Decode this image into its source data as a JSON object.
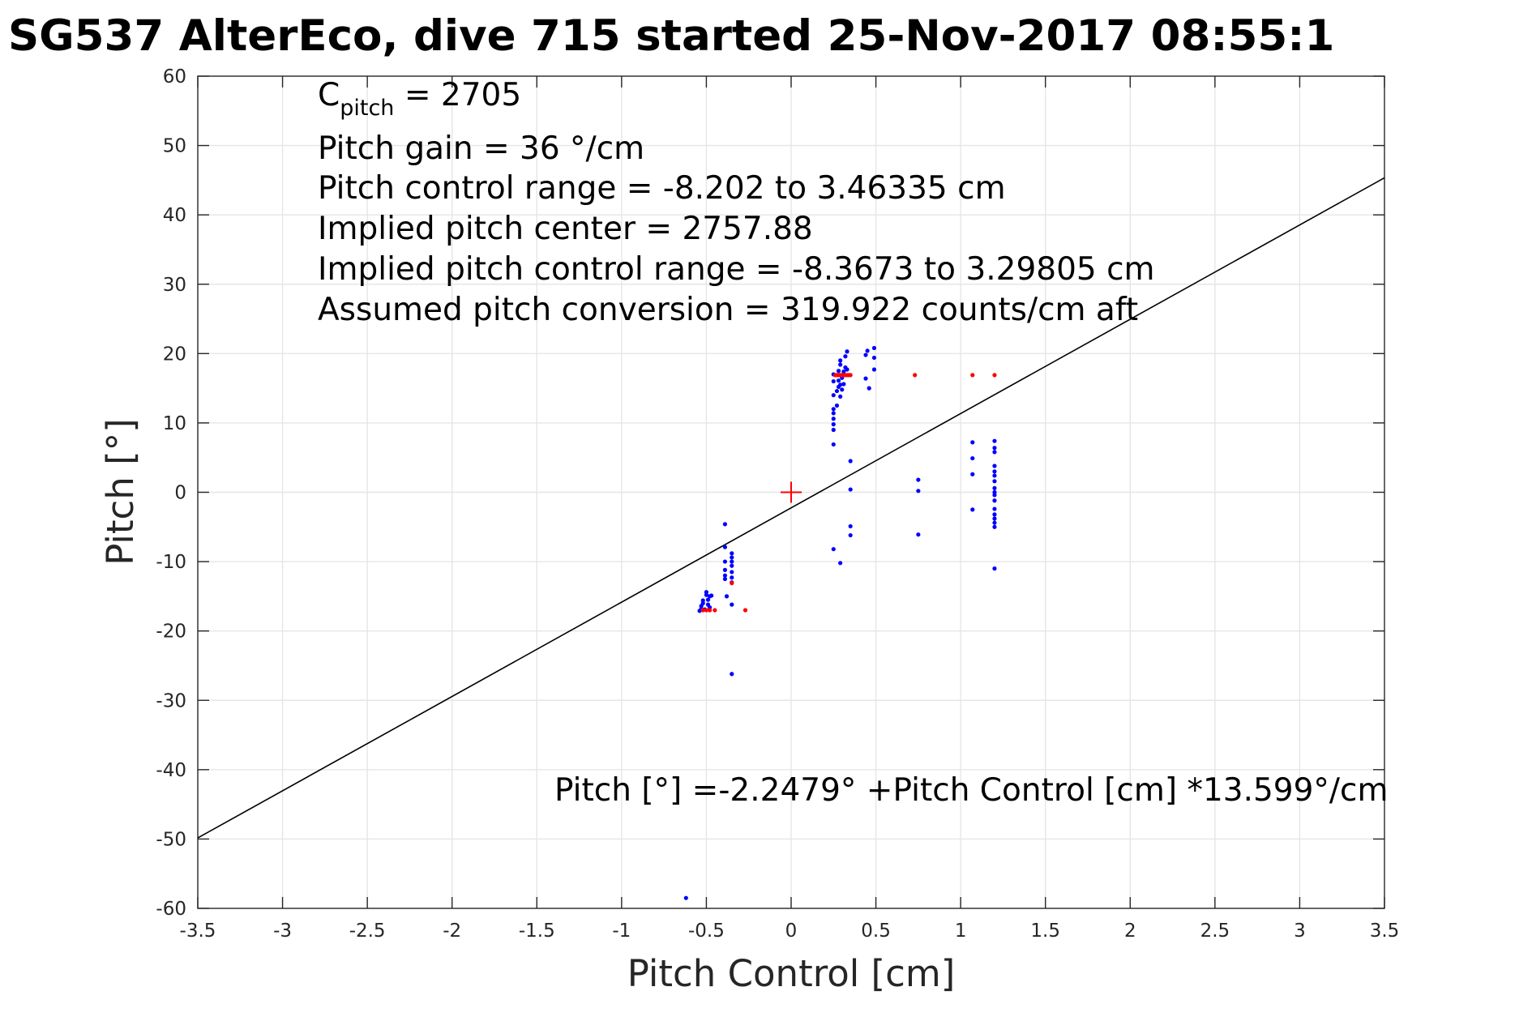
{
  "title": "SG537 AlterEco, dive 715 started 25-Nov-2017 08:55:1",
  "annotations": {
    "c_pitch_main": "C",
    "c_pitch_sub": "pitch",
    "c_pitch_value": " = 2705",
    "pitch_gain": "Pitch gain = 36 °/cm",
    "control_range": "Pitch control range = -8.202 to 3.46335 cm",
    "implied_center": "Implied pitch center = 2757.88",
    "implied_range": "Implied pitch control range = -8.3673 to 3.29805 cm",
    "assumed_conversion": "Assumed pitch conversion = 319.922 counts/cm aft",
    "fit_equation": "Pitch [°] =-2.2479° +Pitch Control [cm] *13.599°/cm"
  },
  "chart_data": {
    "type": "scatter",
    "xlabel": "Pitch Control [cm]",
    "ylabel": "Pitch [°]",
    "xlim": [
      -3.5,
      3.5
    ],
    "ylim": [
      -60,
      60
    ],
    "xticks": [
      -3.5,
      -3,
      -2.5,
      -2,
      -1.5,
      -1,
      -0.5,
      0,
      0.5,
      1,
      1.5,
      2,
      2.5,
      3,
      3.5
    ],
    "xtick_labels": [
      "-3.5",
      "-3",
      "-2.5",
      "-2",
      "-1.5",
      "-1",
      "-0.5",
      "0",
      "0.5",
      "1",
      "1.5",
      "2",
      "2.5",
      "3",
      "3.5"
    ],
    "yticks": [
      60,
      50,
      40,
      30,
      20,
      10,
      0,
      -10,
      -20,
      -30,
      -40,
      -50,
      -60
    ],
    "ytick_labels": [
      "60",
      "50",
      "40",
      "30",
      "20",
      "10",
      "0",
      "-10",
      "-20",
      "-30",
      "-40",
      "-50",
      "-60"
    ],
    "grid": true,
    "fit_line": {
      "intercept": -2.2479,
      "slope": 13.599,
      "color": "#000000"
    },
    "center_marker": {
      "x": 0,
      "y": 0,
      "color": "#ff0000"
    },
    "series": [
      {
        "color": "#0000ff",
        "points": [
          [
            -0.62,
            -58.5
          ],
          [
            -0.35,
            -26.2
          ],
          [
            -0.54,
            -17.1
          ],
          [
            -0.53,
            -16.8
          ],
          [
            -0.53,
            -16.4
          ],
          [
            -0.52,
            -16.0
          ],
          [
            -0.52,
            -15.6
          ],
          [
            -0.51,
            -16.9
          ],
          [
            -0.5,
            -14.8
          ],
          [
            -0.5,
            -14.4
          ],
          [
            -0.49,
            -15.5
          ],
          [
            -0.49,
            -16.2
          ],
          [
            -0.48,
            -15.0
          ],
          [
            -0.48,
            -16.6
          ],
          [
            -0.47,
            -14.9
          ],
          [
            -0.39,
            -4.6
          ],
          [
            -0.39,
            -7.9
          ],
          [
            -0.39,
            -10.0
          ],
          [
            -0.39,
            -11.2
          ],
          [
            -0.39,
            -12.0
          ],
          [
            -0.39,
            -12.5
          ],
          [
            -0.38,
            -15.0
          ],
          [
            -0.35,
            -8.8
          ],
          [
            -0.35,
            -9.4
          ],
          [
            -0.35,
            -10.0
          ],
          [
            -0.35,
            -10.6
          ],
          [
            -0.35,
            -11.5
          ],
          [
            -0.35,
            -12.3
          ],
          [
            -0.35,
            -13.0
          ],
          [
            -0.35,
            -16.2
          ],
          [
            0.25,
            6.9
          ],
          [
            0.25,
            9.0
          ],
          [
            0.25,
            9.8
          ],
          [
            0.25,
            10.6
          ],
          [
            0.25,
            11.4
          ],
          [
            0.25,
            12.0
          ],
          [
            0.25,
            14.0
          ],
          [
            0.25,
            16.0
          ],
          [
            0.25,
            17.0
          ],
          [
            0.27,
            12.5
          ],
          [
            0.27,
            14.6
          ],
          [
            0.28,
            15.2
          ],
          [
            0.28,
            16.1
          ],
          [
            0.28,
            17.5
          ],
          [
            0.29,
            13.8
          ],
          [
            0.29,
            15.5
          ],
          [
            0.29,
            18.4
          ],
          [
            0.29,
            19.0
          ],
          [
            0.3,
            14.8
          ],
          [
            0.3,
            16.5
          ],
          [
            0.31,
            15.6
          ],
          [
            0.31,
            17.4
          ],
          [
            0.32,
            18.0
          ],
          [
            0.32,
            19.6
          ],
          [
            0.33,
            20.3
          ],
          [
            0.33,
            17.7
          ],
          [
            0.25,
            -8.2
          ],
          [
            0.29,
            -10.2
          ],
          [
            0.35,
            4.5
          ],
          [
            0.35,
            0.4
          ],
          [
            0.35,
            -4.9
          ],
          [
            0.35,
            -6.2
          ],
          [
            0.44,
            19.8
          ],
          [
            0.44,
            16.4
          ],
          [
            0.45,
            20.4
          ],
          [
            0.46,
            15.0
          ],
          [
            0.49,
            20.8
          ],
          [
            0.49,
            19.4
          ],
          [
            0.49,
            17.7
          ],
          [
            0.75,
            1.8
          ],
          [
            0.75,
            0.2
          ],
          [
            0.75,
            -6.1
          ],
          [
            1.07,
            7.2
          ],
          [
            1.07,
            4.9
          ],
          [
            1.07,
            2.6
          ],
          [
            1.07,
            -2.5
          ],
          [
            1.2,
            7.4
          ],
          [
            1.2,
            6.4
          ],
          [
            1.2,
            5.8
          ],
          [
            1.2,
            3.8
          ],
          [
            1.2,
            3.0
          ],
          [
            1.2,
            2.4
          ],
          [
            1.2,
            1.6
          ],
          [
            1.2,
            0.6
          ],
          [
            1.2,
            0.0
          ],
          [
            1.2,
            -0.4
          ],
          [
            1.2,
            -1.2
          ],
          [
            1.2,
            -2.4
          ],
          [
            1.2,
            -3.2
          ],
          [
            1.2,
            -3.8
          ],
          [
            1.2,
            -4.4
          ],
          [
            1.2,
            -5.0
          ],
          [
            1.2,
            -11.0
          ]
        ]
      },
      {
        "color": "#ff0000",
        "points": [
          [
            -0.52,
            -17.0
          ],
          [
            -0.5,
            -17.0
          ],
          [
            -0.48,
            -17.0
          ],
          [
            -0.45,
            -17.0
          ],
          [
            -0.27,
            -17.0
          ],
          [
            -0.35,
            -13.1
          ],
          [
            0.26,
            16.9
          ],
          [
            0.27,
            16.9
          ],
          [
            0.28,
            16.9
          ],
          [
            0.29,
            16.9
          ],
          [
            0.3,
            16.9
          ],
          [
            0.31,
            16.9
          ],
          [
            0.32,
            16.9
          ],
          [
            0.33,
            16.9
          ],
          [
            0.34,
            16.9
          ],
          [
            0.35,
            16.9
          ],
          [
            0.73,
            16.9
          ],
          [
            1.07,
            16.9
          ],
          [
            1.2,
            16.9
          ]
        ]
      }
    ]
  }
}
